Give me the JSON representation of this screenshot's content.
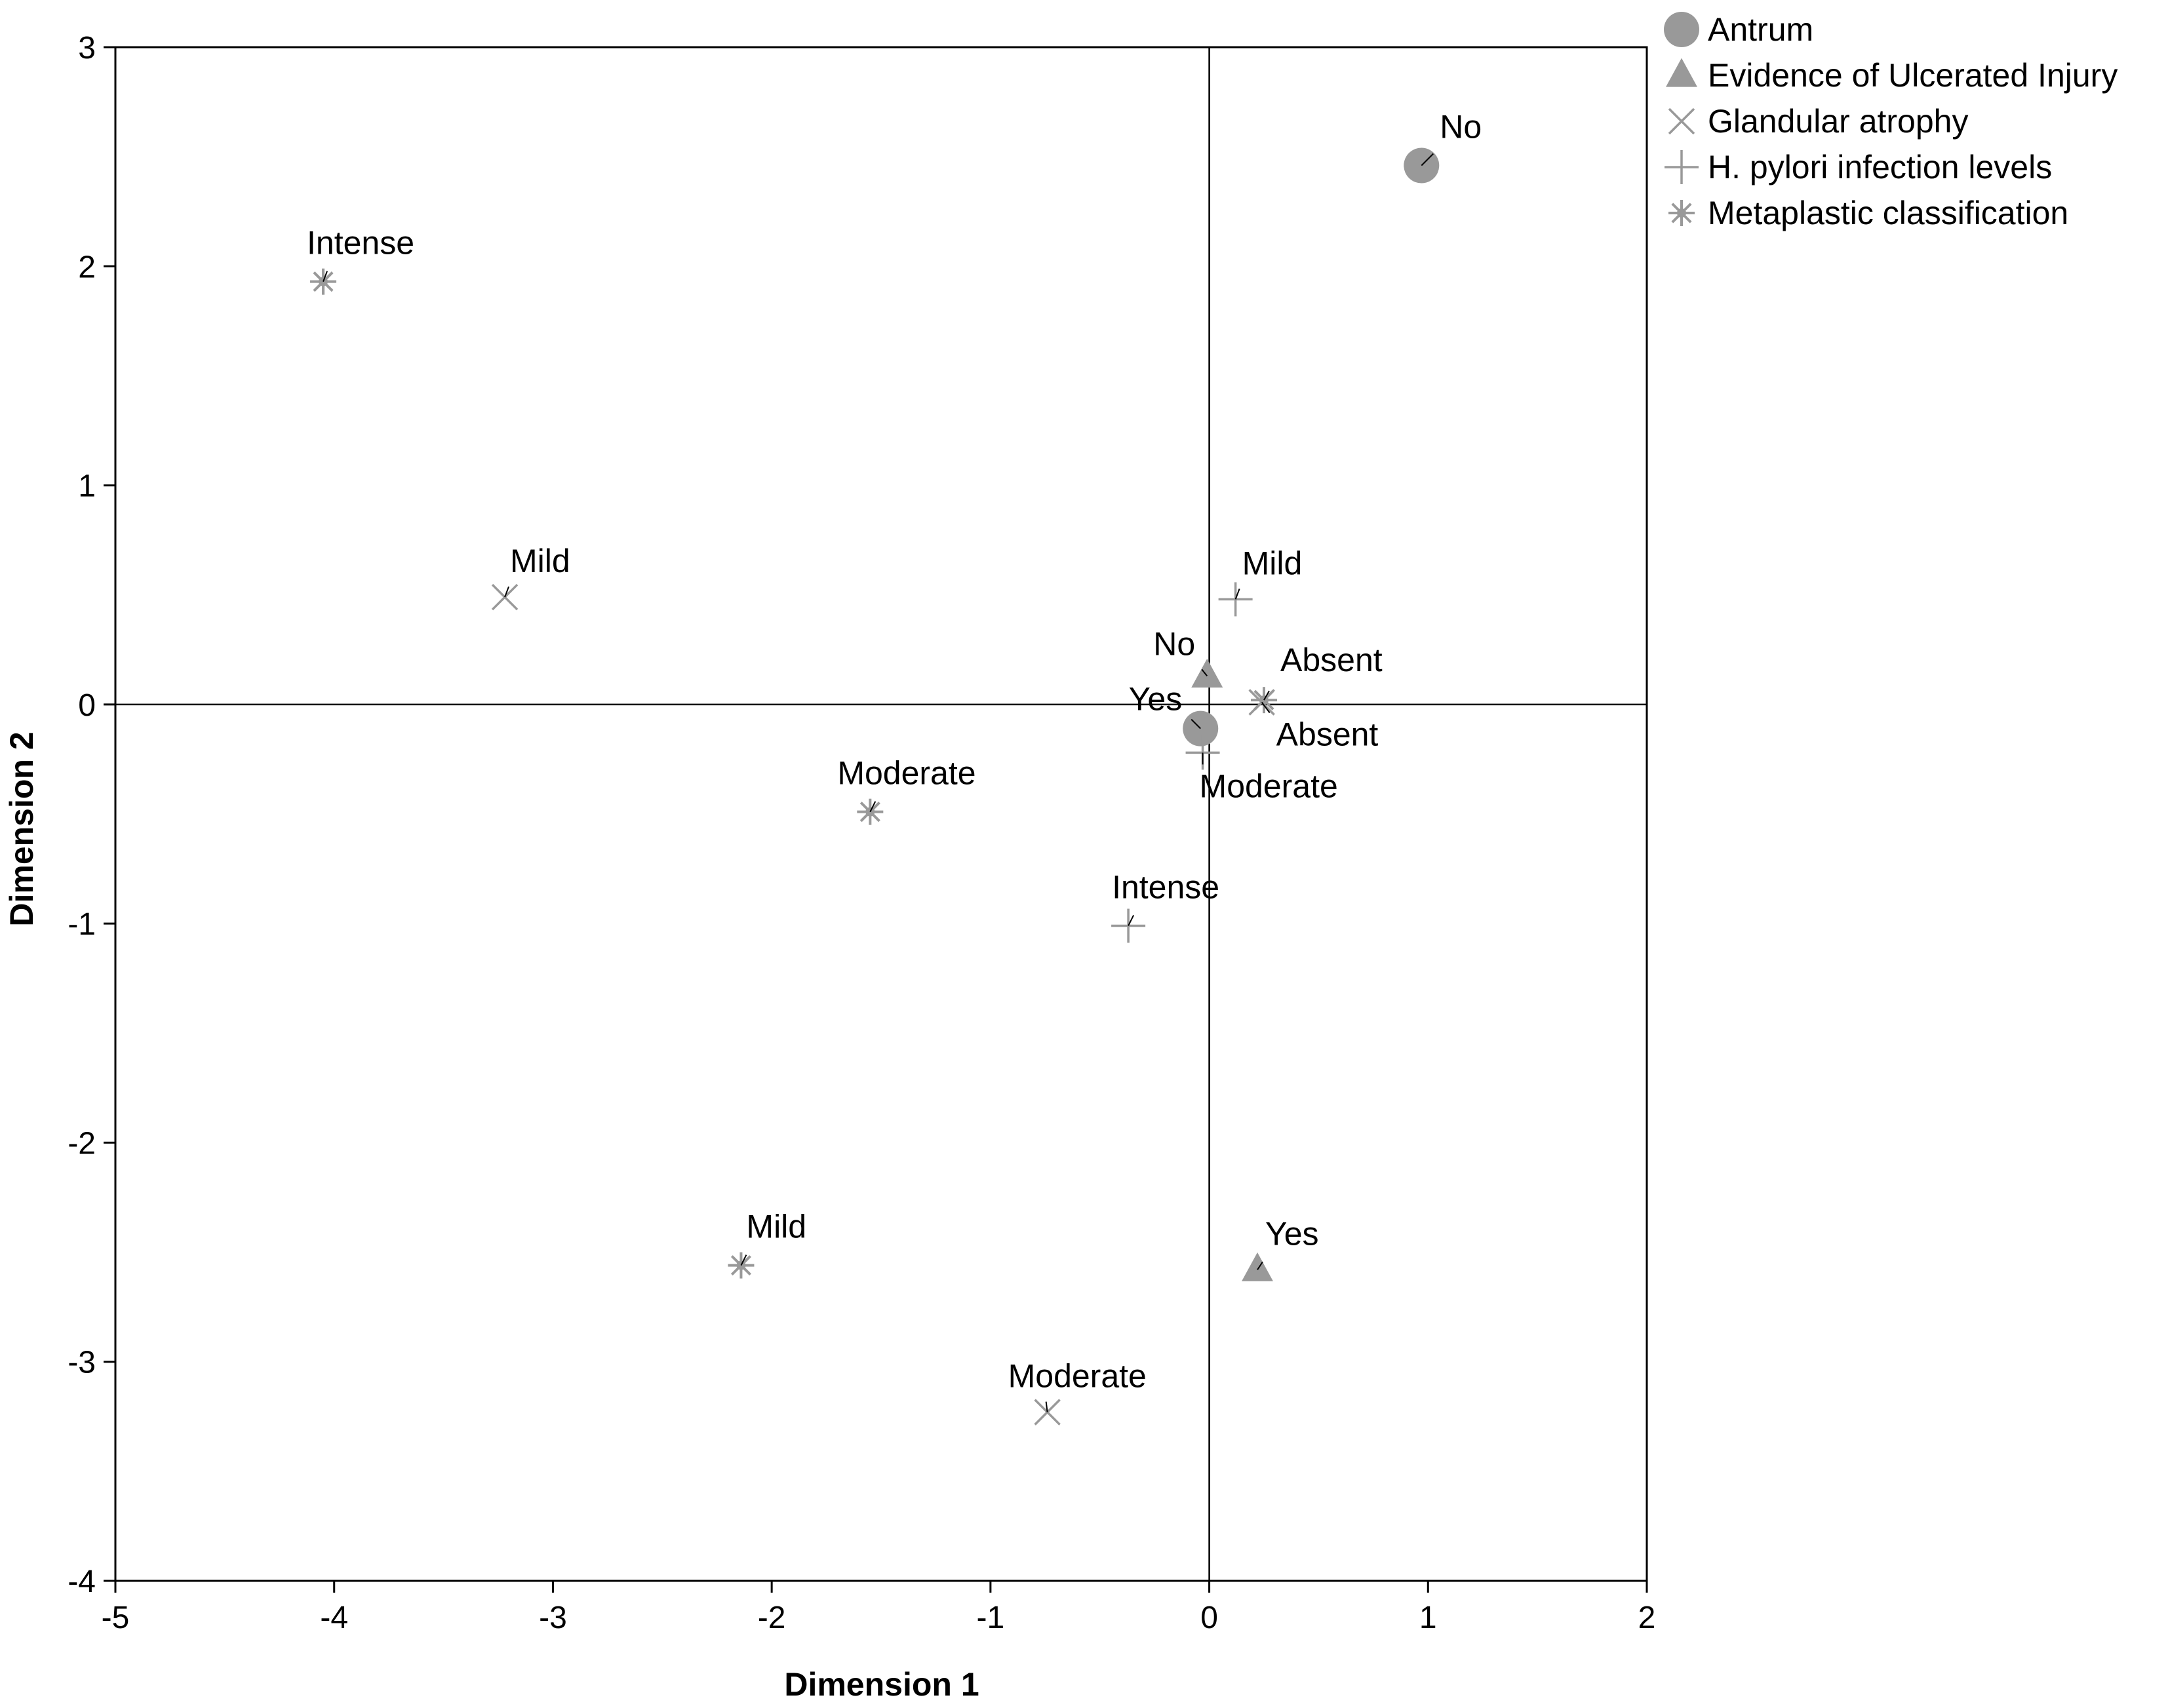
{
  "chart_data": {
    "type": "scatter",
    "title": "",
    "xlabel": "Dimension 1",
    "ylabel": "Dimension 2",
    "xlim": [
      -5,
      2
    ],
    "ylim": [
      -4,
      3
    ],
    "xticks": [
      -5,
      -4,
      -3,
      -2,
      -1,
      0,
      1,
      2
    ],
    "yticks": [
      -4,
      -3,
      -2,
      -1,
      0,
      1,
      2,
      3
    ],
    "grid": false,
    "reference_lines": {
      "x": 0,
      "y": 0
    },
    "legend_position": "top-right, outside plot",
    "series": [
      {
        "name": "Antrum",
        "marker": "circle",
        "color": "#999999",
        "points": [
          {
            "label": "No",
            "x": 0.97,
            "y": 2.46
          },
          {
            "label": "Yes",
            "x": -0.04,
            "y": -0.11
          }
        ]
      },
      {
        "name": "Evidence of Ulcerated Injury",
        "marker": "triangle",
        "color": "#999999",
        "points": [
          {
            "label": "No",
            "x": -0.01,
            "y": 0.13
          },
          {
            "label": "Yes",
            "x": 0.22,
            "y": -2.58
          }
        ]
      },
      {
        "name": "Glandular atrophy",
        "marker": "x",
        "color": "#999999",
        "points": [
          {
            "label": "Mild",
            "x": -3.22,
            "y": 0.49
          },
          {
            "label": "Absent",
            "x": 0.24,
            "y": 0.01
          },
          {
            "label": "Moderate",
            "x": -0.74,
            "y": -3.23
          }
        ]
      },
      {
        "name": "H. pylori infection levels",
        "marker": "plus",
        "color": "#999999",
        "points": [
          {
            "label": "Mild",
            "x": 0.12,
            "y": 0.48
          },
          {
            "label": "Moderate",
            "x": -0.03,
            "y": -0.22
          },
          {
            "label": "Intense",
            "x": -0.37,
            "y": -1.01
          }
        ]
      },
      {
        "name": "Metaplastic classification",
        "marker": "star",
        "color": "#999999",
        "points": [
          {
            "label": "Intense",
            "x": -4.05,
            "y": 1.93
          },
          {
            "label": "Absent",
            "x": 0.25,
            "y": 0.02
          },
          {
            "label": "Moderate",
            "x": -1.55,
            "y": -0.49
          },
          {
            "label": "Mild",
            "x": -2.14,
            "y": -2.56
          }
        ]
      }
    ]
  }
}
